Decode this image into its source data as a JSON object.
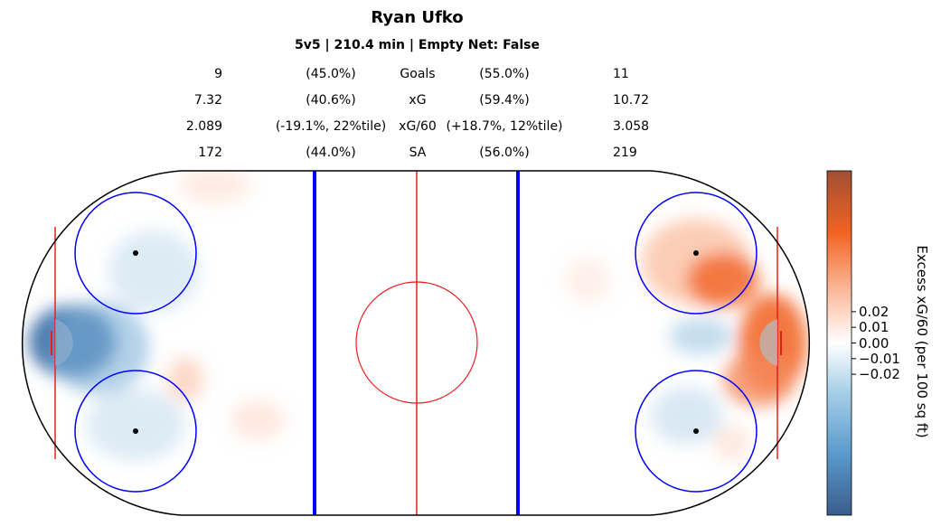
{
  "chart_data": {
    "type": "heatmap",
    "title": "Ryan Ufko",
    "subtitle": "5v5 | 210.4 min | Empty Net: False",
    "stats": [
      {
        "left_value": "9",
        "left_pct": "(45.0%)",
        "label": "Goals",
        "right_pct": "(55.0%)",
        "right_value": "11"
      },
      {
        "left_value": "7.32",
        "left_pct": "(40.6%)",
        "label": "xG",
        "right_pct": "(59.4%)",
        "right_value": "10.72"
      },
      {
        "left_value": "2.089",
        "left_pct": "(-19.1%, 22%tile)",
        "label": "xG/60",
        "right_pct": "(+18.7%, 12%tile)",
        "right_value": "3.058"
      },
      {
        "left_value": "172",
        "left_pct": "(44.0%)",
        "label": "SA",
        "right_pct": "(56.0%)",
        "right_value": "219"
      }
    ],
    "colorbar": {
      "label": "Excess xG/60 (per 100 sq ft)",
      "ticks": [
        "0.02",
        "0.01",
        "0.00",
        "−0.01",
        "−0.02"
      ],
      "tick_values": [
        0.02,
        0.01,
        0.0,
        -0.01,
        -0.02
      ],
      "range": [
        -0.11,
        0.11
      ],
      "colors": {
        "negative": "#3a6b9e",
        "zero": "#ffffff",
        "positive": "#f26322"
      }
    },
    "hotspots": [
      {
        "side": "left",
        "zone": "crease",
        "value": -0.1
      },
      {
        "side": "left",
        "zone": "low slot",
        "value": -0.05
      },
      {
        "side": "left",
        "zone": "right faceoff circle",
        "value": -0.015
      },
      {
        "side": "left",
        "zone": "left faceoff circle",
        "value": -0.015
      },
      {
        "side": "left",
        "zone": "point",
        "value": 0.01
      },
      {
        "side": "neutral",
        "zone": "left neutral",
        "value": 0.015
      },
      {
        "side": "right",
        "zone": "upper faceoff circle",
        "value": 0.07
      },
      {
        "side": "right",
        "zone": "slot",
        "value": 0.05
      },
      {
        "side": "right",
        "zone": "crease",
        "value": 0.09
      },
      {
        "side": "right",
        "zone": "low crease",
        "value": 0.06
      },
      {
        "side": "right",
        "zone": "high slot",
        "value": -0.015
      },
      {
        "side": "right",
        "zone": "lower faceoff circle",
        "value": -0.012
      },
      {
        "side": "right",
        "zone": "lower circle edge",
        "value": 0.02
      }
    ]
  }
}
